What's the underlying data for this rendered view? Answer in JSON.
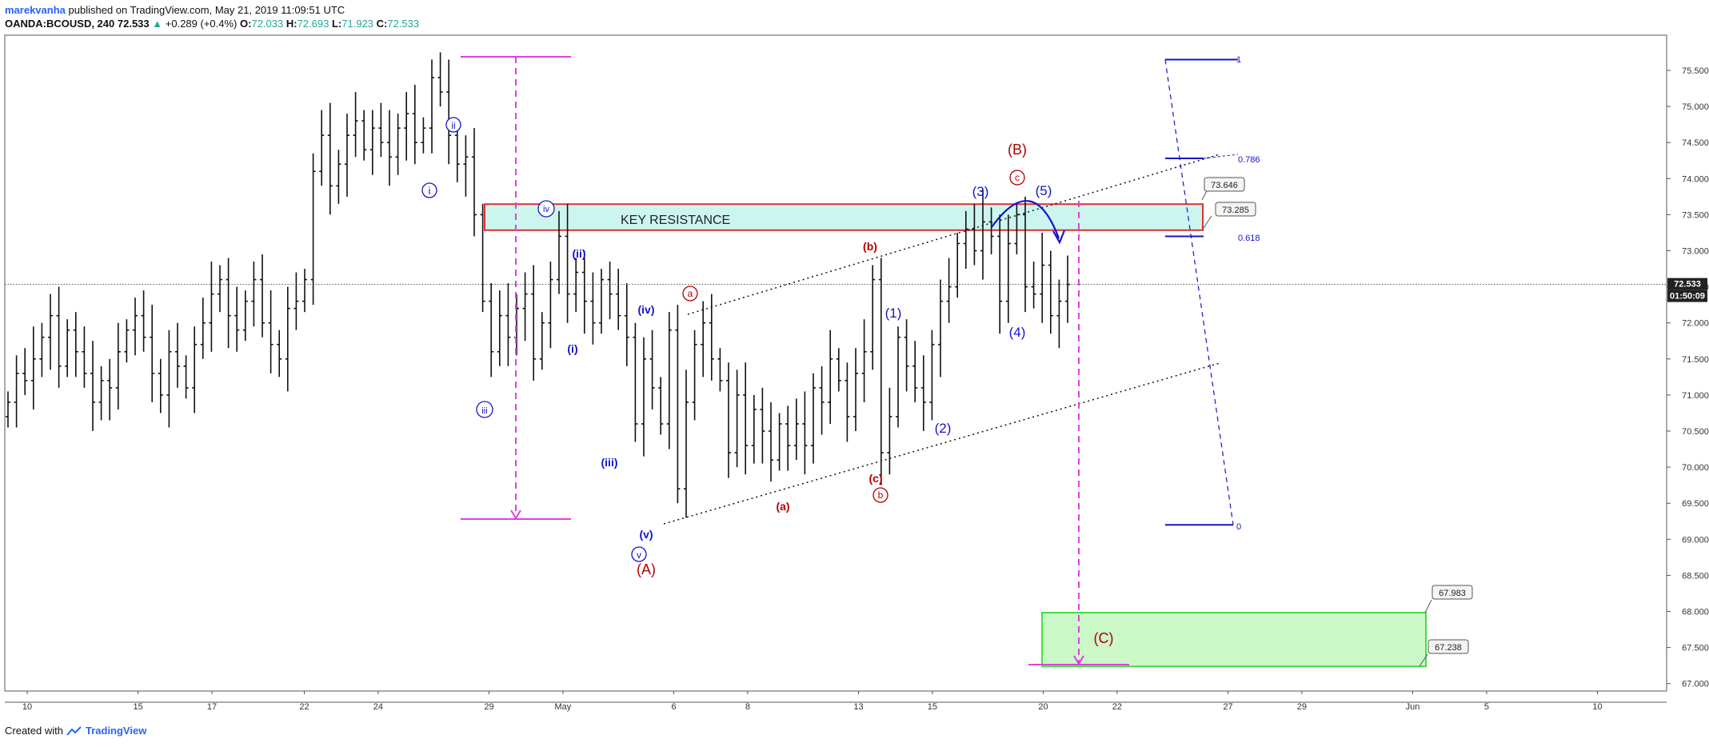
{
  "header": {
    "author": "marekvanha",
    "published": "published on TradingView.com, May 21, 2019 11:09:51 UTC",
    "symbol": "OANDA:BCOUSD, 240",
    "last": "72.533",
    "change_arrow": "▲",
    "change": "+0.289 (+0.4%)",
    "o_label": "O:",
    "o": "72.033",
    "h_label": "H:",
    "h": "72.693",
    "l_label": "L:",
    "l": "71.923",
    "c_label": "C:",
    "c": "72.533"
  },
  "footer": {
    "created_with": "Created with",
    "brand": "TradingView"
  },
  "price_axis": {
    "ticks": [
      "75.500",
      "75.000",
      "74.500",
      "74.000",
      "73.500",
      "73.000",
      "72.500",
      "72.000",
      "71.500",
      "71.000",
      "70.500",
      "70.000",
      "69.500",
      "69.000",
      "68.500",
      "68.000",
      "67.500",
      "67.000"
    ],
    "tick_values": [
      75.5,
      75,
      74.5,
      74,
      73.5,
      73,
      72.5,
      72,
      71.5,
      71,
      70.5,
      70,
      69.5,
      69,
      68.5,
      68,
      67.5,
      67
    ],
    "last_price_label": "72.533",
    "countdown_label": "01:50:09"
  },
  "time_axis": {
    "labels": [
      "10",
      "15",
      "17",
      "22",
      "24",
      "29",
      "May",
      "6",
      "8",
      "13",
      "15",
      "20",
      "22",
      "27",
      "29",
      "Jun",
      "5",
      "10"
    ],
    "bar_index": [
      0,
      6,
      10,
      15,
      19,
      25,
      29,
      35,
      39,
      45,
      49,
      55,
      59,
      65,
      69,
      75,
      79,
      85
    ]
  },
  "annotations": {
    "key_resistance": "KEY RESISTANCE",
    "fib_1": "1",
    "fib_786": "0.786",
    "fib_618": "0.618",
    "fib_0": "0",
    "callout_73646": "73.646",
    "callout_73285": "73.285",
    "callout_67983": "67.983",
    "callout_67238": "67.238",
    "waves": {
      "i_c": "i",
      "ii_c": "ii",
      "iii_c": "iii",
      "iv_c": "iv",
      "v_c": "v",
      "i_p": "(i)",
      "ii_p": "(ii)",
      "iii_p": "(iii)",
      "iv_p": "(iv)",
      "v_p": "(v)",
      "A": "(A)",
      "B": "(B)",
      "C": "(C)",
      "a_c": "a",
      "b_c": "b",
      "c_c": "c",
      "a_p": "(a)",
      "b_p": "(b)",
      "c_p": "(c)",
      "w1": "(1)",
      "w2": "(2)",
      "w3": "(3)",
      "w4": "(4)",
      "w5": "(5)"
    }
  },
  "colors": {
    "blue": "#1414c8",
    "red": "#b00000",
    "magenta": "#e040e0",
    "resistance_fill": "#ccf5ef",
    "resistance_border": "#e03030",
    "target_fill": "#ccf7c8",
    "target_border": "#44dd44",
    "candle": "#111111"
  },
  "chart_data": {
    "type": "candlestick",
    "title": "OANDA:BCOUSD, 240",
    "x_dates": [
      "Apr 10",
      "Apr 15",
      "Apr 17",
      "Apr 22",
      "Apr 24",
      "Apr 29",
      "May",
      "May 6",
      "May 8",
      "May 13",
      "May 15",
      "May 20",
      "May 22",
      "May 27",
      "May 29",
      "Jun",
      "Jun 5",
      "Jun 10"
    ],
    "ylim": [
      66.9,
      75.9
    ],
    "closes": [
      70.9,
      71.3,
      71.2,
      71.5,
      71.8,
      72.1,
      71.4,
      71.9,
      71.6,
      71.3,
      70.9,
      71.2,
      71.1,
      71.6,
      71.9,
      72.1,
      71.8,
      71.3,
      71.0,
      71.6,
      71.4,
      71.1,
      71.7,
      72.0,
      72.4,
      72.6,
      72.1,
      71.9,
      72.3,
      72.6,
      72.0,
      71.7,
      71.5,
      72.2,
      72.3,
      72.6,
      74.1,
      74.6,
      73.9,
      74.2,
      74.6,
      74.8,
      74.4,
      74.7,
      74.5,
      74.3,
      74.7,
      74.9,
      74.5,
      74.7,
      75.4,
      75.2,
      74.6,
      74.2,
      74.3,
      73.5,
      72.3,
      71.6,
      72.1,
      71.8,
      72.2,
      72.4,
      71.5,
      72.0,
      72.6,
      73.2,
      72.4,
      72.7,
      72.3,
      72.0,
      72.6,
      72.4,
      72.1,
      71.8,
      70.6,
      71.5,
      71.1,
      70.6,
      71.9,
      69.7,
      70.9,
      71.7,
      72.0,
      71.5,
      71.2,
      70.2,
      71.0,
      70.3,
      70.8,
      70.5,
      70.1,
      70.6,
      70.3,
      70.6,
      70.3,
      71.1,
      70.9,
      71.5,
      71.2,
      70.7,
      71.3,
      71.6,
      72.6,
      70.2,
      70.7,
      71.8,
      71.4,
      71.1,
      70.9,
      71.7,
      72.3,
      72.5,
      73.1,
      73.3,
      73.0,
      73.4,
      73.2,
      72.3,
      73.1,
      73.5,
      72.5,
      72.4,
      72.8,
      72.1,
      72.3,
      72.533
    ],
    "key_resistance_zone": [
      73.285,
      73.646
    ],
    "target_zone": [
      67.238,
      67.983
    ],
    "fib_levels": {
      "1": 75.65,
      "0.786": 74.28,
      "0.618": 73.2,
      "0": 69.2
    }
  }
}
